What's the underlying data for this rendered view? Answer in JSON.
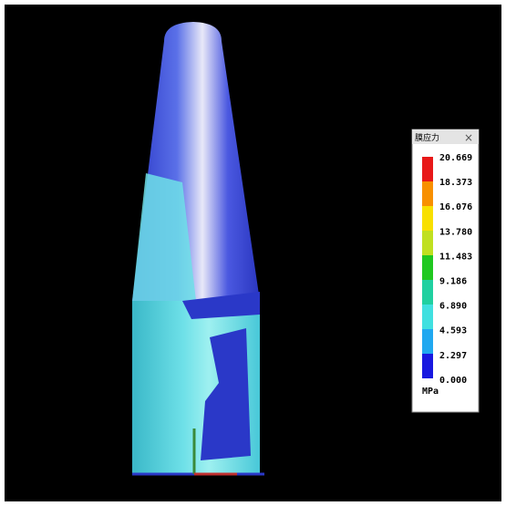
{
  "legend": {
    "title": "膜应力",
    "close": "×",
    "labels": [
      "20.669",
      "18.373",
      "16.076",
      "13.780",
      "11.483",
      "9.186",
      "6.890",
      "4.593",
      "2.297",
      "0.000"
    ],
    "unit": "MPa"
  }
}
